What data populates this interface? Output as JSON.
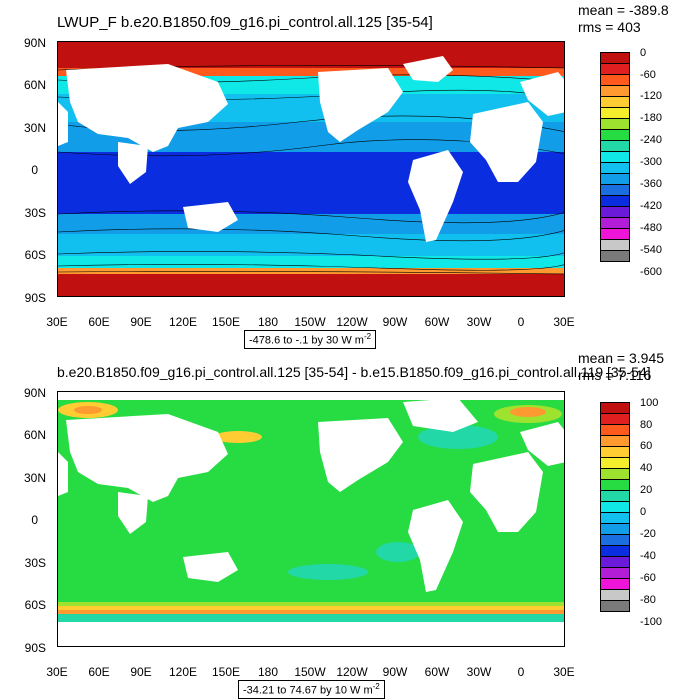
{
  "top": {
    "title": "LWUP_F b.e20.B1850.f09_g16.pi_control.all.125 [35-54]",
    "mean": "mean = -389.8",
    "rms": "rms = 403",
    "contour_info": "-478.6 to -.1 by 30  W m",
    "contour_unit_exp": "-2",
    "colorbar_labels": [
      "0",
      "-60",
      "-120",
      "-180",
      "-240",
      "-300",
      "-360",
      "-420",
      "-480",
      "-540",
      "-600"
    ],
    "colorbar_colors": [
      "#c01010",
      "#e02020",
      "#ff5a1e",
      "#ff9a30",
      "#ffcc33",
      "#f5ee2c",
      "#9de22e",
      "#26dc42",
      "#21d8a6",
      "#10e8e8",
      "#12c0ef",
      "#129de8",
      "#1a6ee0",
      "#0b2de0",
      "#6a1ad8",
      "#b21ed8",
      "#ee14d8",
      "#c8c8c8",
      "#7a7a7a"
    ]
  },
  "bottom": {
    "title": "b.e20.B1850.f09_g16.pi_control.all.125 [35-54] - b.e15.B1850.f09_g16.pi_control.all.119 [35-54]",
    "mean": "mean = 3.945",
    "rms": "rms = 7.116",
    "contour_info": "-34.21 to 74.67 by 10  W m",
    "contour_unit_exp": "-2",
    "colorbar_labels": [
      "100",
      "80",
      "60",
      "40",
      "20",
      "0",
      "-20",
      "-40",
      "-60",
      "-80",
      "-100"
    ],
    "colorbar_colors": [
      "#c01010",
      "#e02020",
      "#ff5a1e",
      "#ff9a30",
      "#ffcc33",
      "#f5ee2c",
      "#9de22e",
      "#26dc42",
      "#21d8a6",
      "#10e8e8",
      "#12c0ef",
      "#129de8",
      "#1a6ee0",
      "#0b2de0",
      "#6a1ad8",
      "#b21ed8",
      "#ee14d8",
      "#c8c8c8",
      "#7a7a7a"
    ]
  },
  "axes": {
    "lat_labels": [
      "90N",
      "60N",
      "30N",
      "0",
      "30S",
      "60S",
      "90S"
    ],
    "lon_labels": [
      "30E",
      "60E",
      "90E",
      "120E",
      "150E",
      "180",
      "150W",
      "120W",
      "90W",
      "60W",
      "30W",
      "0",
      "30E"
    ]
  },
  "colors": {
    "land": "#ffffff",
    "ocean_top_blue": "#0b2de0",
    "ocean_top_mid": "#1a6ee0",
    "ocean_top_light": "#12c0ef",
    "ocean_top_cyan": "#10e8e8",
    "polar_red": "#c01010",
    "bottom_green": "#26dc42",
    "bottom_teal": "#21d8a6",
    "bottom_cyan": "#10e8e8",
    "bottom_yellow": "#ffcc33",
    "bottom_orange": "#ff9a30"
  }
}
